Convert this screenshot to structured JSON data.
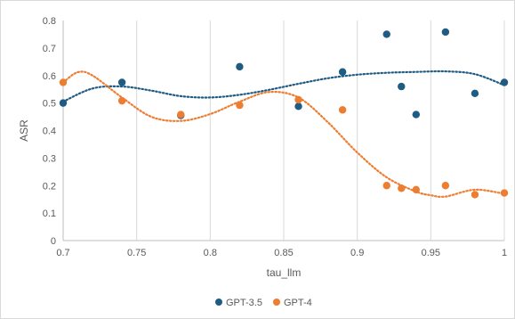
{
  "chart_data": {
    "type": "scatter",
    "title": "",
    "xlabel": "tau_llm",
    "ylabel": "ASR",
    "xlim": [
      0.7,
      1.0
    ],
    "ylim": [
      0,
      0.8
    ],
    "x_ticks": [
      "0.7",
      "0.75",
      "0.8",
      "0.85",
      "0.9",
      "0.95",
      "1"
    ],
    "y_ticks": [
      "0",
      "0.1",
      "0.2",
      "0.3",
      "0.4",
      "0.5",
      "0.6",
      "0.7",
      "0.8"
    ],
    "grid": "vertical",
    "legend_position": "bottom",
    "trendline": "polynomial, dotted",
    "series": [
      {
        "name": "GPT-3.5",
        "color": "#1f5c84",
        "x": [
          0.7,
          0.74,
          0.78,
          0.82,
          0.86,
          0.89,
          0.92,
          0.93,
          0.94,
          0.96,
          0.98,
          1.0
        ],
        "y": [
          0.5,
          0.575,
          0.455,
          0.632,
          0.488,
          0.613,
          0.75,
          0.56,
          0.458,
          0.758,
          0.535,
          0.575
        ]
      },
      {
        "name": "GPT-4",
        "color": "#ed7d31",
        "x": [
          0.7,
          0.74,
          0.78,
          0.82,
          0.86,
          0.89,
          0.92,
          0.93,
          0.94,
          0.96,
          0.98,
          1.0
        ],
        "y": [
          0.575,
          0.508,
          0.458,
          0.492,
          0.512,
          0.475,
          0.2,
          0.19,
          0.185,
          0.2,
          0.167,
          0.173
        ]
      }
    ],
    "trend_curves": [
      {
        "series": "GPT-3.5",
        "x": [
          0.7,
          0.72,
          0.74,
          0.76,
          0.78,
          0.8,
          0.82,
          0.84,
          0.86,
          0.88,
          0.9,
          0.92,
          0.94,
          0.96,
          0.98,
          1.0
        ],
        "y": [
          0.505,
          0.553,
          0.56,
          0.545,
          0.525,
          0.52,
          0.53,
          0.548,
          0.57,
          0.59,
          0.603,
          0.61,
          0.613,
          0.615,
          0.605,
          0.565
        ]
      },
      {
        "series": "GPT-4",
        "x": [
          0.7,
          0.71,
          0.72,
          0.74,
          0.76,
          0.78,
          0.8,
          0.82,
          0.84,
          0.86,
          0.88,
          0.9,
          0.92,
          0.94,
          0.95,
          0.96,
          0.98,
          1.0
        ],
        "y": [
          0.575,
          0.612,
          0.6,
          0.52,
          0.45,
          0.435,
          0.46,
          0.505,
          0.54,
          0.52,
          0.43,
          0.32,
          0.23,
          0.178,
          0.165,
          0.16,
          0.185,
          0.17
        ]
      }
    ]
  }
}
